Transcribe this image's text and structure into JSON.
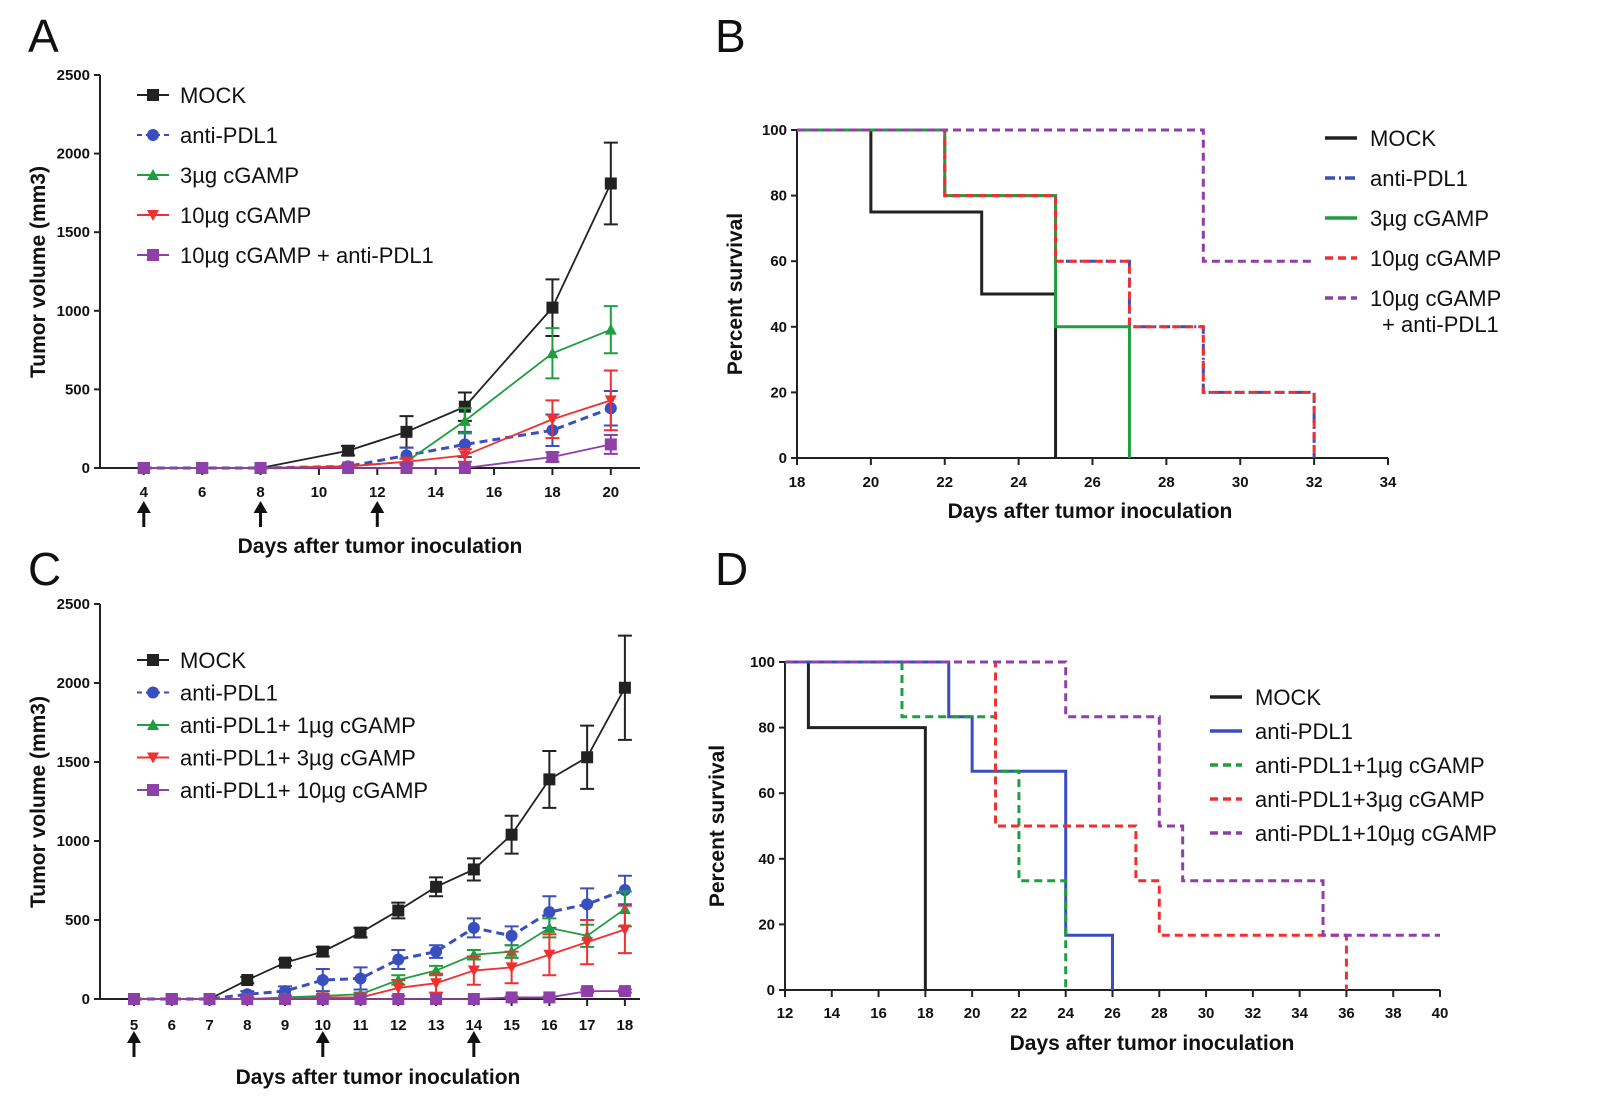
{
  "chart_data": [
    {
      "panel": "A",
      "type": "line",
      "xlabel": "Days after tumor inoculation",
      "ylabel": "Tumor volume (mm3)",
      "xlim": [
        2.5,
        21
      ],
      "ylim": [
        0,
        2500
      ],
      "xticks": [
        4,
        6,
        8,
        10,
        12,
        14,
        16,
        18,
        20
      ],
      "yticks": [
        0,
        500,
        1000,
        1500,
        2000,
        2500
      ],
      "treatment_days": [
        4,
        8,
        12
      ],
      "legend": "top-left",
      "x": [
        4,
        6,
        8,
        11,
        13,
        15,
        18,
        20
      ],
      "series": [
        {
          "name": "MOCK",
          "color": "#222222",
          "marker": "square",
          "dash": "solid",
          "values": [
            0,
            0,
            0,
            110,
            230,
            390,
            1020,
            1810
          ],
          "error": [
            0,
            0,
            0,
            30,
            100,
            90,
            180,
            260
          ]
        },
        {
          "name": "anti-PDL1",
          "color": "#3a4fbf",
          "marker": "circle",
          "dash": "dashed",
          "values": [
            0,
            0,
            0,
            10,
            80,
            150,
            240,
            380
          ],
          "error": [
            0,
            0,
            0,
            10,
            50,
            80,
            100,
            110
          ]
        },
        {
          "name": "3µg cGAMP",
          "color": "#1e9e3e",
          "marker": "triangle-up",
          "dash": "solid",
          "values": [
            0,
            0,
            0,
            10,
            40,
            300,
            730,
            880
          ],
          "error": [
            0,
            0,
            0,
            10,
            20,
            80,
            160,
            150
          ]
        },
        {
          "name": "10µg cGAMP",
          "color": "#f03030",
          "marker": "triangle-down",
          "dash": "solid",
          "values": [
            0,
            0,
            0,
            10,
            40,
            80,
            310,
            430
          ],
          "error": [
            0,
            0,
            0,
            10,
            20,
            40,
            120,
            190
          ]
        },
        {
          "name": "10µg cGAMP + anti-PDL1",
          "color": "#8e3fa8",
          "marker": "square",
          "dash": "solid",
          "values": [
            0,
            0,
            0,
            0,
            0,
            0,
            70,
            150
          ],
          "error": [
            0,
            0,
            0,
            0,
            0,
            0,
            30,
            60
          ]
        }
      ]
    },
    {
      "panel": "B",
      "type": "line",
      "xlabel": "Days after tumor inoculation",
      "ylabel": "Percent survival",
      "xlim": [
        18,
        34
      ],
      "ylim": [
        0,
        100
      ],
      "xticks": [
        18,
        20,
        22,
        24,
        26,
        28,
        30,
        32,
        34
      ],
      "yticks": [
        0,
        20,
        40,
        60,
        80,
        100
      ],
      "legend": "right",
      "series": [
        {
          "name": "MOCK",
          "color": "#222222",
          "dash": "solid",
          "steps": [
            [
              18,
              100
            ],
            [
              20,
              75
            ],
            [
              23,
              50
            ],
            [
              25,
              0
            ]
          ]
        },
        {
          "name": "anti-PDL1",
          "color": "#3a4fbf",
          "dash": "dashdot",
          "steps": [
            [
              18,
              100
            ],
            [
              22,
              80
            ],
            [
              25,
              60
            ],
            [
              27,
              40
            ],
            [
              29,
              20
            ],
            [
              32,
              0
            ]
          ]
        },
        {
          "name": "3µg cGAMP",
          "color": "#1e9e3e",
          "dash": "solid",
          "steps": [
            [
              18,
              100
            ],
            [
              22,
              80
            ],
            [
              25,
              40
            ],
            [
              27,
              0
            ]
          ]
        },
        {
          "name": "10µg cGAMP",
          "color": "#f03030",
          "dash": "dashed",
          "steps": [
            [
              18,
              100
            ],
            [
              22,
              80
            ],
            [
              25,
              60
            ],
            [
              27,
              40
            ],
            [
              29,
              20
            ],
            [
              32,
              0
            ]
          ]
        },
        {
          "name": "10µg cGAMP\n+ anti-PDL1",
          "color": "#8e3fa8",
          "dash": "dashed",
          "steps": [
            [
              18,
              100
            ],
            [
              29,
              60
            ]
          ],
          "end": 32
        }
      ]
    },
    {
      "panel": "C",
      "type": "line",
      "xlabel": "Days after tumor inoculation",
      "ylabel": "Tumor volume (mm3)",
      "xlim": [
        4.1,
        18.4
      ],
      "ylim": [
        0,
        2500
      ],
      "xticks": [
        5,
        6,
        7,
        8,
        9,
        10,
        11,
        12,
        13,
        14,
        15,
        16,
        17,
        18
      ],
      "yticks": [
        0,
        500,
        1000,
        1500,
        2000,
        2500
      ],
      "treatment_days": [
        5,
        10,
        14
      ],
      "legend": "top-left",
      "x": [
        5,
        6,
        7,
        8,
        9,
        10,
        11,
        12,
        13,
        14,
        15,
        16,
        17,
        18
      ],
      "series": [
        {
          "name": "MOCK",
          "color": "#222222",
          "marker": "square",
          "dash": "solid",
          "values": [
            0,
            0,
            0,
            120,
            230,
            300,
            420,
            560,
            710,
            820,
            1040,
            1390,
            1530,
            1970
          ],
          "error": [
            0,
            0,
            0,
            20,
            20,
            30,
            30,
            50,
            60,
            70,
            120,
            180,
            200,
            330
          ]
        },
        {
          "name": "anti-PDL1",
          "color": "#3a4fbf",
          "marker": "circle",
          "dash": "dashed",
          "values": [
            0,
            0,
            0,
            30,
            50,
            120,
            130,
            250,
            300,
            450,
            400,
            550,
            600,
            690
          ],
          "error": [
            0,
            0,
            0,
            20,
            30,
            70,
            70,
            60,
            40,
            60,
            60,
            100,
            100,
            90
          ]
        },
        {
          "name": "anti-PDL1+ 1µg cGAMP",
          "color": "#1e9e3e",
          "marker": "triangle-up",
          "dash": "solid",
          "values": [
            0,
            0,
            0,
            0,
            10,
            20,
            30,
            120,
            180,
            280,
            300,
            450,
            400,
            570
          ],
          "error": [
            0,
            0,
            0,
            0,
            10,
            10,
            10,
            30,
            30,
            30,
            40,
            60,
            70,
            110
          ]
        },
        {
          "name": "anti-PDL1+ 3µg cGAMP",
          "color": "#f03030",
          "marker": "triangle-down",
          "dash": "solid",
          "values": [
            0,
            0,
            0,
            0,
            0,
            10,
            10,
            70,
            100,
            180,
            200,
            280,
            360,
            440
          ],
          "error": [
            0,
            0,
            0,
            0,
            0,
            10,
            10,
            50,
            60,
            90,
            100,
            130,
            140,
            150
          ]
        },
        {
          "name": "anti-PDL1+ 10µg cGAMP",
          "color": "#8e3fa8",
          "marker": "square",
          "dash": "solid",
          "values": [
            0,
            0,
            0,
            0,
            0,
            0,
            0,
            0,
            0,
            0,
            10,
            10,
            50,
            50
          ],
          "error": [
            0,
            0,
            0,
            0,
            0,
            0,
            0,
            0,
            0,
            0,
            5,
            5,
            10,
            10
          ]
        }
      ]
    },
    {
      "panel": "D",
      "type": "line",
      "xlabel": "Days after tumor inoculation",
      "ylabel": "Percent survival",
      "xlim": [
        12,
        40
      ],
      "ylim": [
        0,
        100
      ],
      "xticks": [
        12,
        14,
        16,
        18,
        20,
        22,
        24,
        26,
        28,
        30,
        32,
        34,
        36,
        38,
        40
      ],
      "yticks": [
        0,
        20,
        40,
        60,
        80,
        100
      ],
      "legend": "right",
      "series": [
        {
          "name": "MOCK",
          "color": "#222222",
          "dash": "solid",
          "steps": [
            [
              12,
              100
            ],
            [
              13,
              80
            ],
            [
              18,
              0
            ]
          ]
        },
        {
          "name": "anti-PDL1",
          "color": "#3a4fbf",
          "dash": "solid",
          "steps": [
            [
              12,
              100
            ],
            [
              19,
              83.3
            ],
            [
              20,
              66.7
            ],
            [
              24,
              16.7
            ],
            [
              26,
              0
            ]
          ]
        },
        {
          "name": "anti-PDL1+1µg cGAMP",
          "color": "#1e9e3e",
          "dash": "dashed",
          "steps": [
            [
              12,
              100
            ],
            [
              17,
              83.3
            ],
            [
              21,
              66.7
            ],
            [
              22,
              33.3
            ],
            [
              24,
              0
            ]
          ]
        },
        {
          "name": "anti-PDL1+3µg cGAMP",
          "color": "#f03030",
          "dash": "dashed",
          "steps": [
            [
              12,
              100
            ],
            [
              21,
              50
            ],
            [
              27,
              33.3
            ],
            [
              28,
              16.7
            ],
            [
              36,
              0
            ]
          ]
        },
        {
          "name": "anti-PDL1+10µg cGAMP",
          "color": "#8e3fa8",
          "dash": "dashed",
          "steps": [
            [
              12,
              100
            ],
            [
              24,
              83.3
            ],
            [
              28,
              50
            ],
            [
              29,
              33.3
            ],
            [
              35,
              16.7
            ]
          ],
          "end": 40
        }
      ]
    }
  ]
}
